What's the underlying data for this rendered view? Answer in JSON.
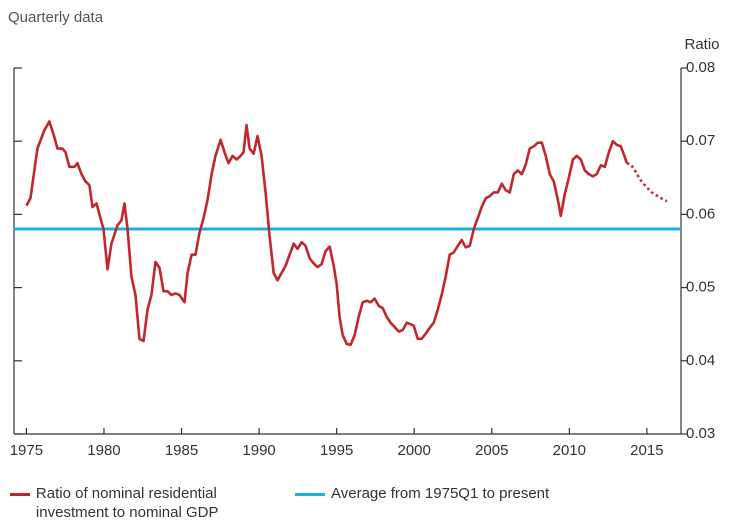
{
  "chart_data": {
    "type": "line",
    "subtitle": "Quarterly data",
    "y_axis_label": "Ratio",
    "xlim": [
      1974.2,
      2017.2
    ],
    "xticks": [
      1975,
      1980,
      1985,
      1990,
      1995,
      2000,
      2005,
      2010,
      2015
    ],
    "ylim": [
      0.03,
      0.08
    ],
    "yticks": [
      0.03,
      0.04,
      0.05,
      0.06,
      0.07,
      0.08
    ],
    "series": [
      {
        "name": "Ratio of nominal residential investment to nominal GDP",
        "color": "#c0282d",
        "style": "solid",
        "x": [
          1975.0,
          1975.26,
          1975.71,
          1976.16,
          1976.48,
          1976.81,
          1977.0,
          1977.32,
          1977.52,
          1977.77,
          1978.1,
          1978.29,
          1978.55,
          1978.81,
          1979.06,
          1979.26,
          1979.52,
          1979.71,
          1979.97,
          1980.23,
          1980.48,
          1980.87,
          1981.13,
          1981.32,
          1981.52,
          1981.77,
          1982.03,
          1982.29,
          1982.55,
          1982.81,
          1983.06,
          1983.32,
          1983.58,
          1983.84,
          1984.1,
          1984.35,
          1984.61,
          1984.87,
          1985.19,
          1985.39,
          1985.65,
          1985.9,
          1986.16,
          1986.42,
          1986.68,
          1986.94,
          1987.19,
          1987.52,
          1987.77,
          1988.03,
          1988.29,
          1988.55,
          1988.81,
          1989.0,
          1989.19,
          1989.39,
          1989.65,
          1989.9,
          1990.16,
          1990.42,
          1990.68,
          1990.94,
          1991.19,
          1991.45,
          1991.71,
          1991.97,
          1992.23,
          1992.48,
          1992.74,
          1993.0,
          1993.26,
          1993.52,
          1993.77,
          1994.03,
          1994.29,
          1994.55,
          1994.81,
          1995.0,
          1995.19,
          1995.39,
          1995.65,
          1995.9,
          1996.16,
          1996.42,
          1996.68,
          1996.94,
          1997.19,
          1997.45,
          1997.71,
          1997.97,
          1998.23,
          1998.48,
          1998.74,
          1999.0,
          1999.26,
          1999.52,
          1999.77,
          1999.97,
          2000.23,
          2000.48,
          2000.74,
          2001.0,
          2001.26,
          2001.52,
          2001.77,
          2002.03,
          2002.29,
          2002.55,
          2002.81,
          2003.06,
          2003.32,
          2003.58,
          2003.84,
          2004.1,
          2004.35,
          2004.61,
          2004.87,
          2005.13,
          2005.39,
          2005.65,
          2005.9,
          2006.16,
          2006.42,
          2006.68,
          2006.94,
          2007.19,
          2007.45,
          2007.71,
          2007.97,
          2008.23,
          2008.48,
          2008.74,
          2009.0,
          2009.26,
          2009.45,
          2009.71,
          2009.97,
          2010.23,
          2010.48,
          2010.74,
          2011.0,
          2011.26,
          2011.52,
          2011.77,
          2012.03,
          2012.29,
          2012.55,
          2012.81,
          2013.06,
          2013.32,
          2013.58,
          2013.71
        ],
        "values": [
          0.0612,
          0.0622,
          0.069,
          0.0715,
          0.0727,
          0.0705,
          0.069,
          0.069,
          0.0685,
          0.0665,
          0.0665,
          0.067,
          0.0655,
          0.0645,
          0.064,
          0.061,
          0.0615,
          0.06,
          0.058,
          0.0525,
          0.056,
          0.0585,
          0.0592,
          0.0615,
          0.058,
          0.0515,
          0.049,
          0.043,
          0.0427,
          0.047,
          0.049,
          0.0535,
          0.0527,
          0.0495,
          0.0495,
          0.049,
          0.0492,
          0.049,
          0.048,
          0.052,
          0.0545,
          0.0545,
          0.0575,
          0.0595,
          0.062,
          0.0655,
          0.068,
          0.0702,
          0.0685,
          0.067,
          0.068,
          0.0675,
          0.068,
          0.0685,
          0.0722,
          0.069,
          0.0683,
          0.0707,
          0.068,
          0.063,
          0.057,
          0.052,
          0.051,
          0.052,
          0.053,
          0.0545,
          0.056,
          0.0553,
          0.0562,
          0.0557,
          0.054,
          0.0533,
          0.0528,
          0.0532,
          0.055,
          0.0556,
          0.053,
          0.0505,
          0.046,
          0.0435,
          0.0423,
          0.0422,
          0.0435,
          0.046,
          0.048,
          0.0482,
          0.048,
          0.0485,
          0.0475,
          0.0472,
          0.046,
          0.0452,
          0.0446,
          0.044,
          0.0442,
          0.0452,
          0.045,
          0.0448,
          0.043,
          0.043,
          0.0437,
          0.0445,
          0.0452,
          0.047,
          0.049,
          0.0515,
          0.0545,
          0.0548,
          0.0557,
          0.0565,
          0.0555,
          0.0557,
          0.058,
          0.0595,
          0.061,
          0.0622,
          0.0625,
          0.063,
          0.063,
          0.0642,
          0.0633,
          0.063,
          0.0655,
          0.066,
          0.0655,
          0.0668,
          0.069,
          0.0693,
          0.0698,
          0.0698,
          0.068,
          0.0655,
          0.0645,
          0.062,
          0.0598,
          0.0628,
          0.065,
          0.0675,
          0.068,
          0.0675,
          0.066,
          0.0655,
          0.0652,
          0.0655,
          0.0667,
          0.0665,
          0.0685,
          0.07,
          0.0695,
          0.0693,
          0.0678,
          0.067
        ]
      },
      {
        "color": "#c0282d",
        "style": "dotted",
        "x": [
          2013.71,
          2013.97,
          2014.23,
          2014.55,
          2014.94,
          2015.32,
          2015.84,
          2016.29
        ],
        "values": [
          0.067,
          0.0668,
          0.066,
          0.0648,
          0.0638,
          0.063,
          0.0623,
          0.0618
        ]
      }
    ],
    "hlines": [
      {
        "name": "Average from 1975Q1 to present",
        "color": "#1ab0e6",
        "value": 0.058
      }
    ]
  }
}
